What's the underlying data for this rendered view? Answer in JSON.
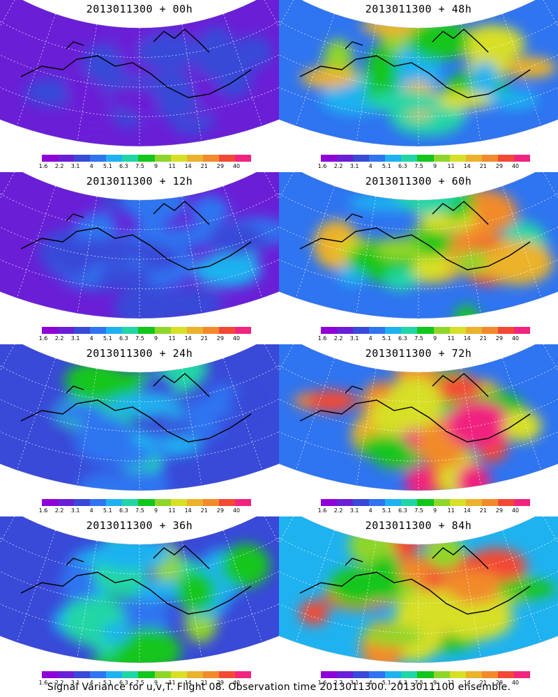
{
  "chart_data": {
    "type": "heatmap",
    "colorbar": {
      "labels": [
        "1.6",
        "2.2",
        "3.1",
        "4",
        "5.1",
        "6.3",
        "7.5",
        "9",
        "11",
        "14",
        "21",
        "29",
        "40"
      ],
      "colors": [
        "#8f00d9",
        "#6a1fd6",
        "#3949d8",
        "#2f74f0",
        "#1fb2f0",
        "#20d6a6",
        "#12c61b",
        "#8fd62a",
        "#d7df27",
        "#ebb22b",
        "#f28a2c",
        "#f24836",
        "#f1247f"
      ]
    },
    "panels": [
      {
        "title": "2013011300 + 00h",
        "intensity": 0.15
      },
      {
        "title": "2013011300 + 48h",
        "intensity": 0.62
      },
      {
        "title": "2013011300 + 12h",
        "intensity": 0.25
      },
      {
        "title": "2013011300 + 60h",
        "intensity": 0.72
      },
      {
        "title": "2013011300 + 24h",
        "intensity": 0.38
      },
      {
        "title": "2013011300 + 72h",
        "intensity": 0.82
      },
      {
        "title": "2013011300 + 36h",
        "intensity": 0.5
      },
      {
        "title": "2013011300 + 84h",
        "intensity": 0.9
      }
    ]
  },
  "caption": "Signal Variance for u,v,T. Flight 08. Observation time 2013011300. 2013011100 ensemble."
}
